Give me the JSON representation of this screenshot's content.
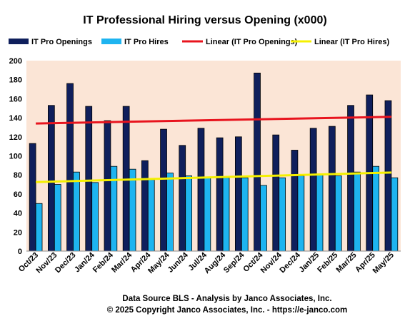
{
  "chart_data": {
    "type": "bar",
    "title": "IT Professional Hiring versus Opening (x000)",
    "categories": [
      "Oct/23",
      "Nov/23",
      "Dec/23",
      "Jan/24",
      "Feb/24",
      "Mar/24",
      "Apr/24",
      "May/24",
      "Jun/24",
      "Jul/24",
      "Aug/24",
      "Sep/24",
      "Oct/24",
      "Nov/24",
      "Dec/24",
      "Jan/25",
      "Feb/25",
      "Mar/25",
      "Apr/25",
      "May/25"
    ],
    "series": [
      {
        "name": "IT Pro Openings",
        "color": "#0f1f5c",
        "values": [
          113,
          153,
          176,
          152,
          137,
          152,
          95,
          128,
          111,
          129,
          119,
          120,
          187,
          122,
          106,
          129,
          131,
          153,
          164,
          158
        ]
      },
      {
        "name": "IT Pro Hires",
        "color": "#1eb4f0",
        "values": [
          50,
          70,
          83,
          72,
          89,
          86,
          75,
          82,
          79,
          77,
          77,
          77,
          69,
          77,
          79,
          81,
          79,
          83,
          89,
          77
        ]
      }
    ],
    "trendlines": [
      {
        "name": "Linear (IT Pro Openings)",
        "color": "#e8141e",
        "start": 134,
        "end": 141
      },
      {
        "name": "Linear (IT Pro Hires)",
        "color": "#f5f000",
        "start": 72.5,
        "end": 82.5
      }
    ],
    "ylim": [
      0,
      200
    ],
    "yticks": [
      "0",
      "20",
      "40",
      "60",
      "80",
      "100",
      "120",
      "140",
      "160",
      "180",
      "200"
    ],
    "legend_position": "top",
    "grid": false,
    "plot_background": "#fbe5d6",
    "footer": [
      "Data Source BLS - Analysis  by Janco Associates,  Inc.",
      "© 2025 Copyright  Janco  Associates,  Inc. - https://e-janco.com"
    ]
  }
}
